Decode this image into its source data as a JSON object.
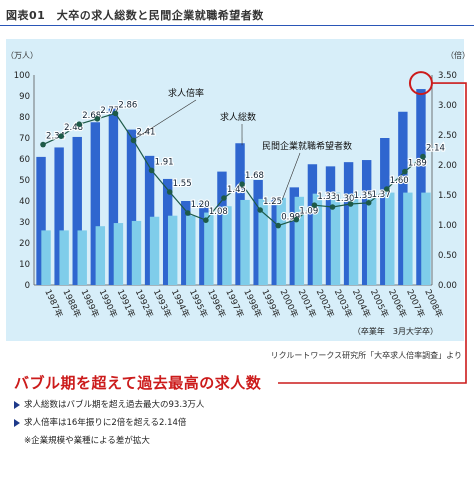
{
  "page": {
    "title": "図表01　大卒の求人総数と民間企業就職希望者数",
    "source": "リクルートワークス研究所「大卒求人倍率調査」より",
    "headline": "バブル期を超えて過去最高の求人数",
    "bullets": [
      "求人総数はバブル期を超え過去最大の93.3万人",
      "求人倍率は16年振りに2倍を超える2.14倍"
    ],
    "note": "※企業規模や業種による差が拡大"
  },
  "colors": {
    "bar_dark": "#2f66cf",
    "bar_light": "#7fcdea",
    "line": "#1d5a48",
    "panel": "#d7eef9",
    "highlight": "#cc1b1b",
    "accent_rule": "#2a56b7"
  },
  "chart_data": {
    "type": "bar",
    "categories": [
      "1987年",
      "1988年",
      "1989年",
      "1990年",
      "1991年",
      "1992年",
      "1993年",
      "1994年",
      "1995年",
      "1996年",
      "1997年",
      "1998年",
      "1999年",
      "2000年",
      "2001年",
      "2002年",
      "2003年",
      "2004年",
      "2005年",
      "2006年",
      "2007年",
      "2008年"
    ],
    "ylabel_left": "（万人）",
    "ylabel_right": "（倍）",
    "ylim_left": [
      0,
      100
    ],
    "ylim_right": [
      0,
      3.5
    ],
    "yticks_left": [
      "0",
      "10",
      "20",
      "30",
      "40",
      "50",
      "60",
      "70",
      "80",
      "90",
      "100"
    ],
    "yticks_right": [
      "0.00",
      "0.50",
      "1.00",
      "1.50",
      "2.00",
      "2.50",
      "3.00",
      "3.50"
    ],
    "x_caption": "（卒業年　3月大学卒）",
    "series": [
      {
        "name": "求人総数",
        "axis": "left",
        "kind": "bar",
        "values": [
          61.0,
          65.5,
          70.5,
          77.5,
          84.0,
          74.0,
          61.5,
          50.5,
          40.0,
          39.0,
          54.0,
          67.5,
          50.0,
          41.0,
          46.5,
          57.5,
          56.5,
          58.5,
          59.5,
          70.0,
          82.5,
          93.3
        ]
      },
      {
        "name": "民間企業就職希望者数",
        "axis": "left",
        "kind": "bar",
        "values": [
          26.0,
          26.0,
          26.0,
          28.0,
          29.5,
          30.5,
          32.5,
          33.0,
          33.0,
          34.5,
          37.5,
          40.5,
          41.0,
          41.5,
          42.0,
          43.5,
          44.0,
          43.5,
          43.5,
          44.0,
          44.0,
          44.0
        ]
      },
      {
        "name": "求人倍率",
        "axis": "right",
        "kind": "line",
        "values": [
          2.34,
          2.48,
          2.68,
          2.77,
          2.86,
          2.41,
          1.91,
          1.55,
          1.2,
          1.08,
          1.45,
          1.68,
          1.25,
          0.99,
          1.09,
          1.33,
          1.3,
          1.35,
          1.37,
          1.6,
          1.89,
          2.14
        ],
        "labels": [
          "2.34",
          "2.48",
          "2.68",
          "2.77",
          "2.86",
          "2.41",
          "1.91",
          "1.55",
          "1.20",
          "1.08",
          "1.45",
          "1.68",
          "1.25",
          "0.99",
          "1.09",
          "1.33",
          "1.30",
          "1.35",
          "1.37",
          "1.60",
          "1.89",
          "2.14"
        ]
      }
    ],
    "annotations": [
      "求人倍率",
      "求人総数",
      "民間企業就職希望者数"
    ],
    "highlight": {
      "series": "求人総数",
      "category": "2008年"
    },
    "grid": false
  }
}
